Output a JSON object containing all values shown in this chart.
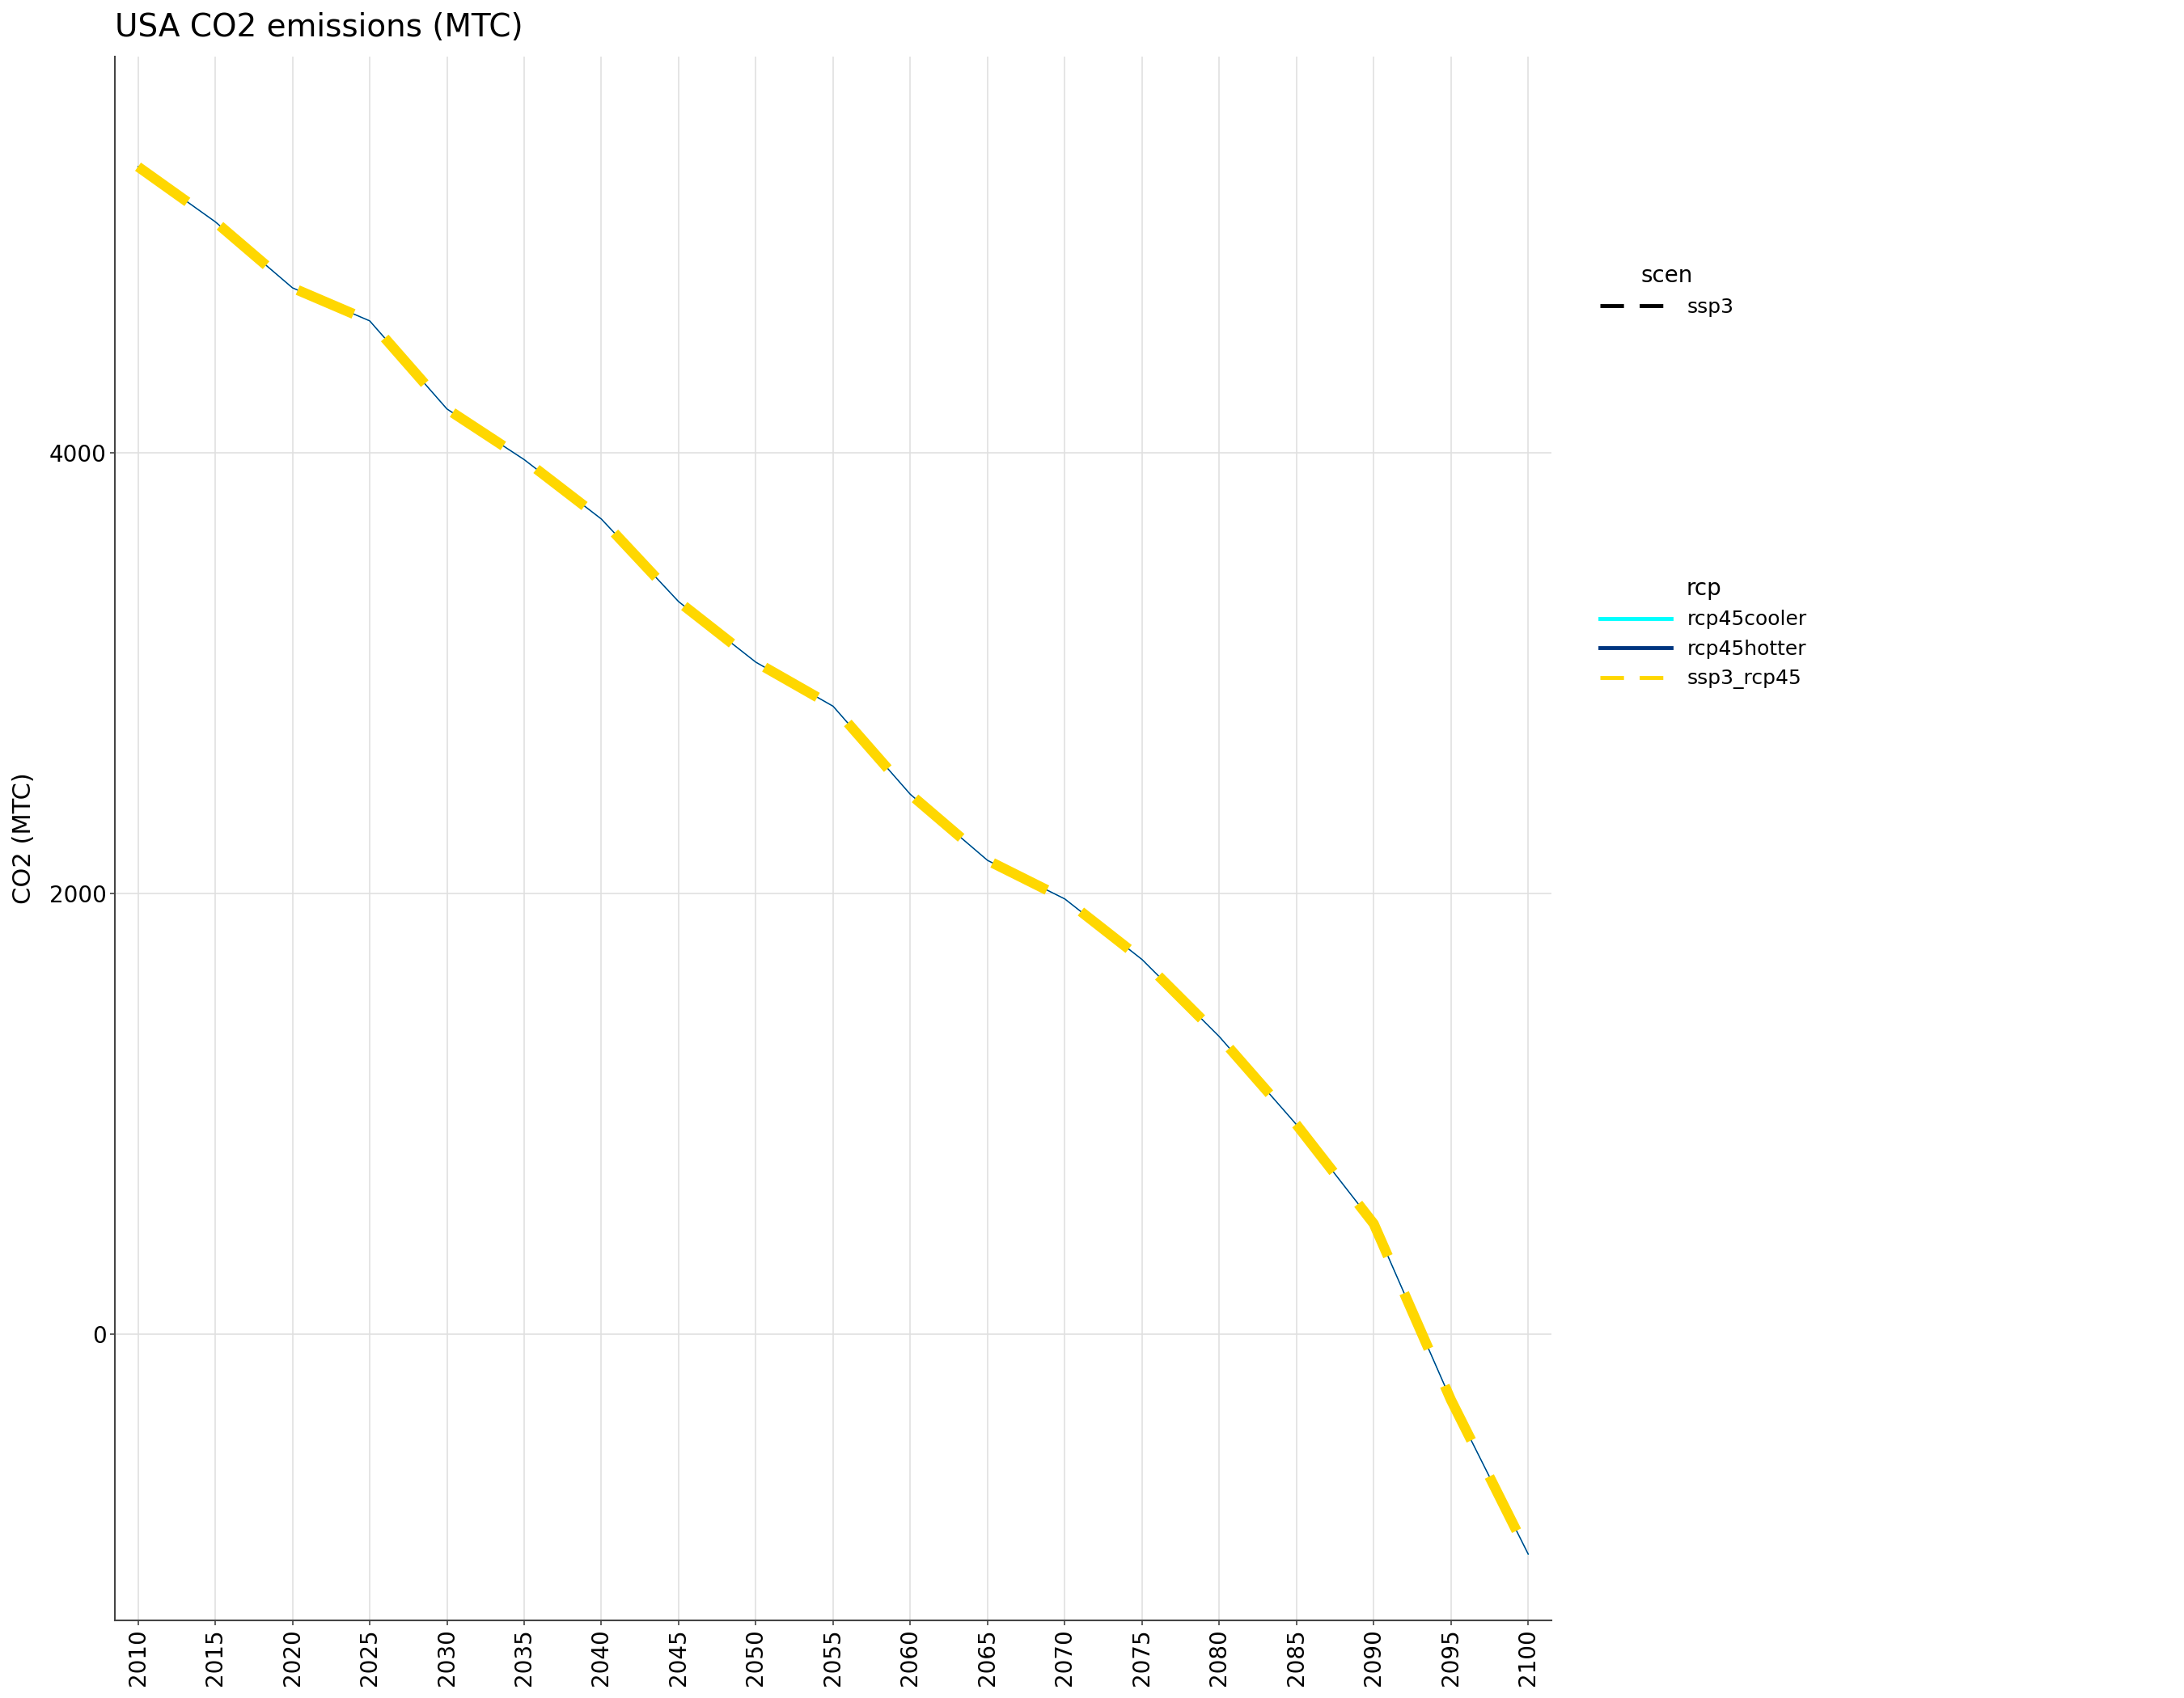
{
  "title": "USA CO2 emissions (MTC)",
  "xlabel": "",
  "ylabel": "CO2 (MTC)",
  "years": [
    2010,
    2015,
    2020,
    2025,
    2030,
    2035,
    2040,
    2045,
    2050,
    2055,
    2060,
    2065,
    2070,
    2075,
    2080,
    2085,
    2090,
    2095,
    2100
  ],
  "ssp3_rcp45": [
    5300,
    5050,
    4750,
    4600,
    4200,
    3970,
    3700,
    3325,
    3050,
    2850,
    2450,
    2150,
    1975,
    1700,
    1350,
    950,
    500,
    -300,
    -1000
  ],
  "rcp45cooler": [
    5300,
    5050,
    4750,
    4600,
    4200,
    3970,
    3700,
    3325,
    3050,
    2850,
    2450,
    2150,
    1975,
    1700,
    1350,
    950,
    500,
    -300,
    -1000
  ],
  "rcp45hotter": [
    5300,
    5050,
    4750,
    4600,
    4200,
    3970,
    3700,
    3325,
    3050,
    2850,
    2450,
    2150,
    1975,
    1700,
    1350,
    950,
    500,
    -300,
    -1000
  ],
  "ylim": [
    -1300,
    5800
  ],
  "xlim": [
    2008.5,
    2101.5
  ],
  "yticks": [
    0,
    2000,
    4000
  ],
  "xticks": [
    2010,
    2015,
    2020,
    2025,
    2030,
    2035,
    2040,
    2045,
    2050,
    2055,
    2060,
    2065,
    2070,
    2075,
    2080,
    2085,
    2090,
    2095,
    2100
  ],
  "colors": {
    "ssp3_rcp45": "#FFD700",
    "rcp45cooler": "#00FFFF",
    "rcp45hotter": "#003580"
  },
  "bg_color": "#FFFFFF",
  "grid_color": "#E0E0E0",
  "line_width": 9.0,
  "title_fontsize": 28,
  "axis_label_fontsize": 22,
  "tick_fontsize": 20,
  "legend_title_fontsize": 20,
  "legend_fontsize": 18
}
